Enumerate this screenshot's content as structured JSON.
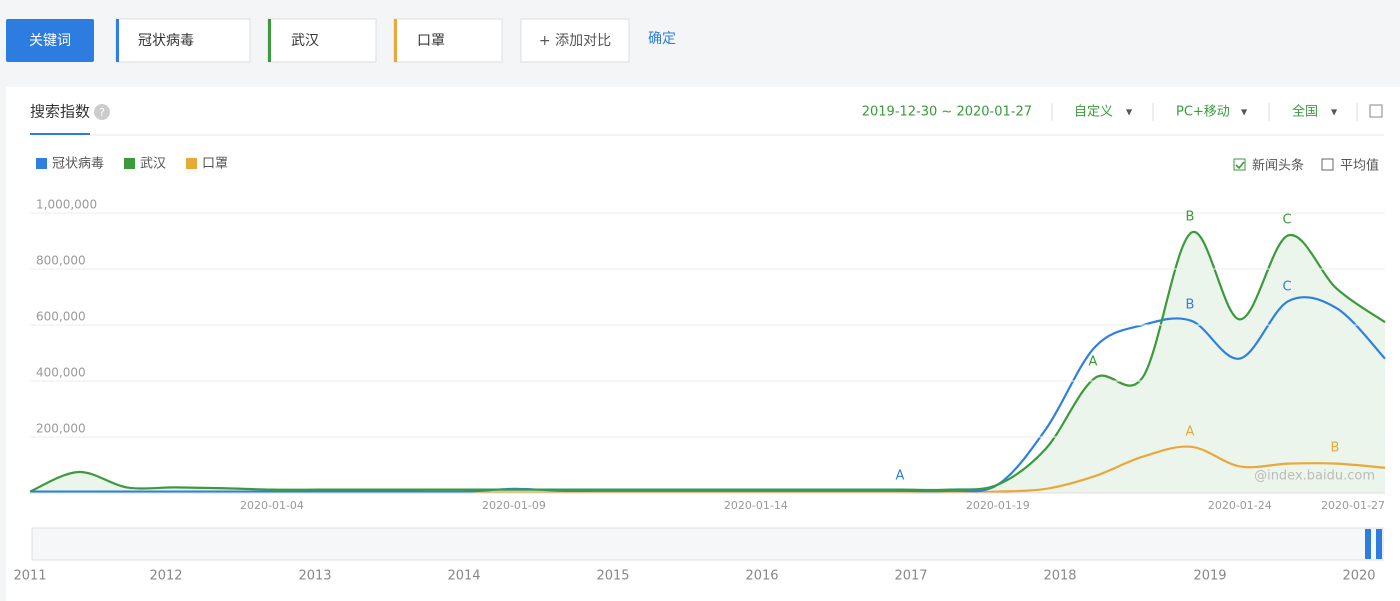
{
  "toolbar": {
    "keyword_button": "关键词",
    "keywords": [
      "冠状病毒",
      "武汉",
      "口罩"
    ],
    "add_compare": "+ 添加对比",
    "confirm": "确定"
  },
  "panel": {
    "tab": "搜索指数",
    "date_range": "2019-12-30 ~ 2020-01-27",
    "period": "自定义",
    "device": "PC+移动",
    "region": "全国",
    "options": [
      {
        "label": "新闻头条",
        "checked": true
      },
      {
        "label": "平均值",
        "checked": false
      }
    ],
    "watermark": "@index.baidu.com"
  },
  "chart_data": {
    "type": "line",
    "area_series": 1,
    "categories": [
      null,
      null,
      null,
      null,
      null,
      "2020-01-04",
      null,
      null,
      null,
      null,
      "2020-01-09",
      null,
      null,
      null,
      null,
      "2020-01-14",
      null,
      null,
      null,
      null,
      "2020-01-19",
      null,
      null,
      null,
      null,
      "2020-01-24",
      null,
      null,
      "2020-01-27"
    ],
    "ylim": [
      0,
      1000000
    ],
    "yticks": [
      {
        "value": 200000,
        "label": "200,000"
      },
      {
        "value": 400000,
        "label": "400,000"
      },
      {
        "value": 600000,
        "label": "600,000"
      },
      {
        "value": 800000,
        "label": "800,000"
      },
      {
        "value": 1000000,
        "label": "1,000,000"
      }
    ],
    "grid": true,
    "series": [
      {
        "name": "冠状病毒",
        "color": "#2f7fe0",
        "values": [
          5000,
          5000,
          5000,
          5000,
          5000,
          5000,
          5000,
          5000,
          5000,
          5000,
          15000,
          8000,
          8000,
          8000,
          8000,
          8000,
          8000,
          8000,
          8000,
          8000,
          30000,
          230000,
          520000,
          600000,
          615000,
          480000,
          685000,
          660000,
          480000
        ],
        "annotations": [
          "A",
          "B",
          "C"
        ]
      },
      {
        "name": "武汉",
        "color": "#3a9a3c",
        "values": [
          5000,
          75000,
          20000,
          20000,
          17000,
          12000,
          12000,
          12000,
          12000,
          12000,
          12000,
          12000,
          12000,
          12000,
          12000,
          12000,
          12000,
          12000,
          12000,
          12000,
          30000,
          160000,
          410000,
          415000,
          930000,
          620000,
          920000,
          730000,
          610000
        ],
        "annotations": [
          "A",
          "B",
          "C"
        ]
      },
      {
        "name": "口罩",
        "color": "#e8a83a",
        "values": [
          2000,
          2000,
          2000,
          2000,
          2000,
          2000,
          2000,
          2000,
          2000,
          2000,
          2000,
          2000,
          2000,
          2000,
          2000,
          2000,
          2000,
          2000,
          2000,
          2000,
          5000,
          15000,
          60000,
          130000,
          165000,
          95000,
          105000,
          105000,
          90000
        ],
        "annotations": [
          "A",
          "B"
        ]
      }
    ]
  },
  "timeline": {
    "years": [
      "2011",
      "2012",
      "2013",
      "2014",
      "2015",
      "2016",
      "2017",
      "2018",
      "2019",
      "2020"
    ]
  }
}
